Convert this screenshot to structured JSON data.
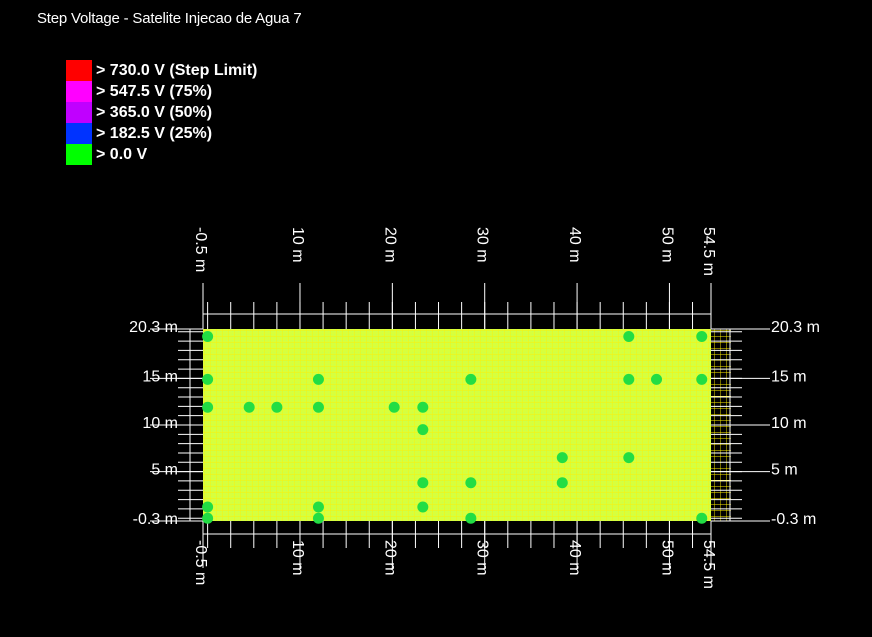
{
  "title": "Step Voltage - Satelite Injecao de Agua 7",
  "legend": [
    {
      "label": "> 730.0 V (Step Limit)",
      "color": "#ff0000"
    },
    {
      "label": "> 547.5 V (75%)",
      "color": "#ff00ff"
    },
    {
      "label": "> 365.0 V (50%)",
      "color": "#c000ff"
    },
    {
      "label": "> 182.5 V (25%)",
      "color": "#0033ff"
    },
    {
      "label": "> 0.0 V",
      "color": "#00ff00"
    }
  ],
  "colors": {
    "background": "#000000",
    "surface": "#d8ff3c",
    "grid_mesh": "#fff200",
    "conductor": "#22dd44",
    "axis": "#ffffff"
  },
  "axes": {
    "x_range": [
      -0.5,
      54.5
    ],
    "y_range": [
      -0.3,
      20.3
    ],
    "x_ticks": [
      {
        "value": -0.5,
        "label": "-0.5 m"
      },
      {
        "value": 10,
        "label": "10 m"
      },
      {
        "value": 20,
        "label": "20 m"
      },
      {
        "value": 30,
        "label": "30 m"
      },
      {
        "value": 40,
        "label": "40 m"
      },
      {
        "value": 50,
        "label": "50 m"
      },
      {
        "value": 54.5,
        "label": "54.5 m"
      }
    ],
    "y_ticks": [
      {
        "value": 20.3,
        "label": "20.3 m"
      },
      {
        "value": 15,
        "label": "15 m"
      },
      {
        "value": 10,
        "label": "10 m"
      },
      {
        "value": 5,
        "label": "5 m"
      },
      {
        "value": -0.3,
        "label": "-0.3 m"
      }
    ]
  },
  "electrodes": [
    [
      0,
      19.5
    ],
    [
      45.6,
      19.5
    ],
    [
      53.5,
      19.5
    ],
    [
      0,
      14.9
    ],
    [
      12.0,
      14.9
    ],
    [
      28.5,
      14.9
    ],
    [
      45.6,
      14.9
    ],
    [
      48.6,
      14.9
    ],
    [
      53.5,
      14.9
    ],
    [
      0,
      11.9
    ],
    [
      4.5,
      11.9
    ],
    [
      7.5,
      11.9
    ],
    [
      12.0,
      11.9
    ],
    [
      20.2,
      11.9
    ],
    [
      23.3,
      11.9
    ],
    [
      23.3,
      9.5
    ],
    [
      38.4,
      6.5
    ],
    [
      45.6,
      6.5
    ],
    [
      23.3,
      3.8
    ],
    [
      28.5,
      3.8
    ],
    [
      38.4,
      3.8
    ],
    [
      0,
      1.2
    ],
    [
      12.0,
      1.2
    ],
    [
      23.3,
      1.2
    ],
    [
      0,
      0
    ],
    [
      12.0,
      0
    ],
    [
      28.5,
      0
    ],
    [
      53.5,
      0
    ]
  ]
}
